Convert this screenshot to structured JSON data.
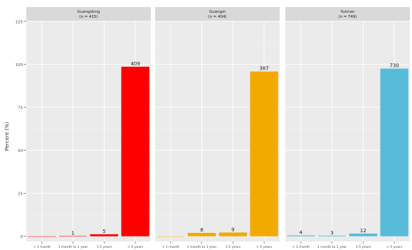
{
  "chart_data": {
    "type": "bar",
    "ylabel": "Percent (%)",
    "ylim": [
      -3,
      125
    ],
    "yticks": [
      0,
      25,
      50,
      75,
      100,
      125
    ],
    "categories": [
      "< 1 month",
      "1 month to 1 year",
      "1-5 years",
      "> 5 years"
    ],
    "grid": "on",
    "panels": [
      {
        "title": "Guangdong",
        "subtitle": "(n = 415)",
        "color": "#ff0000",
        "values": [
          0,
          0.2,
          1.2,
          98.6
        ],
        "labels": [
          "",
          "1",
          "5",
          "409"
        ]
      },
      {
        "title": "Guangxi",
        "subtitle": "(n = 404)",
        "color": "#f2aa00",
        "values": [
          0,
          2.0,
          2.2,
          95.8
        ],
        "labels": [
          "",
          "8",
          "9",
          "387"
        ]
      },
      {
        "title": "Yunnan",
        "subtitle": "(n = 749)",
        "color": "#56bcd9",
        "values": [
          0.5,
          0.4,
          1.6,
          97.5
        ],
        "labels": [
          "4",
          "3",
          "12",
          "730"
        ]
      }
    ]
  }
}
